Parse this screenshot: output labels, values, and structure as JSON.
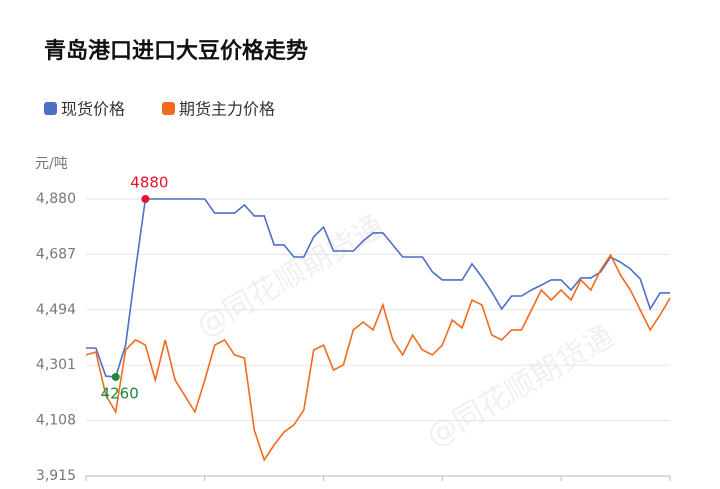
{
  "chart_data": {
    "type": "line",
    "title": "青岛港口进口大豆价格走势",
    "y_unit": "元/吨",
    "watermark": "@同花顺期货通",
    "categories": [
      null,
      null,
      null,
      null,
      null,
      null,
      null,
      null,
      null,
      null,
      null,
      null,
      null,
      null,
      null,
      null,
      null,
      null,
      null,
      null,
      null,
      null,
      null,
      null,
      null,
      null,
      null,
      null,
      null,
      null,
      null,
      null,
      null,
      null,
      null,
      null,
      null,
      null,
      null,
      null,
      null,
      null,
      null,
      null,
      null,
      null,
      null,
      null,
      null,
      null,
      null,
      null,
      null,
      null,
      null,
      null,
      null,
      null,
      null,
      null
    ],
    "series": [
      {
        "name": "现货价格",
        "color": "#4e6fc6",
        "values": [
          4361,
          4361,
          4263,
          4260,
          4371,
          4633,
          4880,
          4880,
          4880,
          4880,
          4880,
          4880,
          4880,
          4831,
          4831,
          4831,
          4859,
          4821,
          4821,
          4720,
          4720,
          4678,
          4678,
          4748,
          4782,
          4699,
          4699,
          4699,
          4734,
          4762,
          4762,
          4720,
          4678,
          4678,
          4678,
          4626,
          4598,
          4598,
          4598,
          4654,
          4608,
          4556,
          4497,
          4542,
          4542,
          4563,
          4580,
          4598,
          4598,
          4563,
          4605,
          4605,
          4626,
          4678,
          4660,
          4636,
          4601,
          4497,
          4553,
          4553
        ]
      },
      {
        "name": "期货主力价格",
        "color": "#f26b1d",
        "values": [
          4337,
          4347,
          4197,
          4138,
          4354,
          4389,
          4371,
          4249,
          4389,
          4249,
          4194,
          4138,
          4249,
          4371,
          4389,
          4337,
          4326,
          4075,
          3971,
          4023,
          4068,
          4093,
          4145,
          4354,
          4371,
          4284,
          4302,
          4424,
          4451,
          4424,
          4511,
          4389,
          4337,
          4406,
          4354,
          4337,
          4371,
          4458,
          4431,
          4528,
          4511,
          4406,
          4389,
          4424,
          4424,
          4493,
          4563,
          4528,
          4563,
          4528,
          4598,
          4563,
          4633,
          4685,
          4615,
          4563,
          4493,
          4424,
          4476,
          4535
        ]
      }
    ],
    "annotations": [
      {
        "text": "4880",
        "value": 4880,
        "color": "#e8112d"
      },
      {
        "text": "4260",
        "value": 4260,
        "color": "#1a8a3a"
      }
    ],
    "ylim": [
      3915,
      4880
    ],
    "yticks": [
      {
        "value": 3915,
        "label": "3,915"
      },
      {
        "value": 4108,
        "label": "4,108"
      },
      {
        "value": 4301,
        "label": "4,301"
      },
      {
        "value": 4494,
        "label": "4,494"
      },
      {
        "value": 4687,
        "label": "4,687"
      },
      {
        "value": 4880,
        "label": "4,880"
      }
    ],
    "grid": true
  }
}
